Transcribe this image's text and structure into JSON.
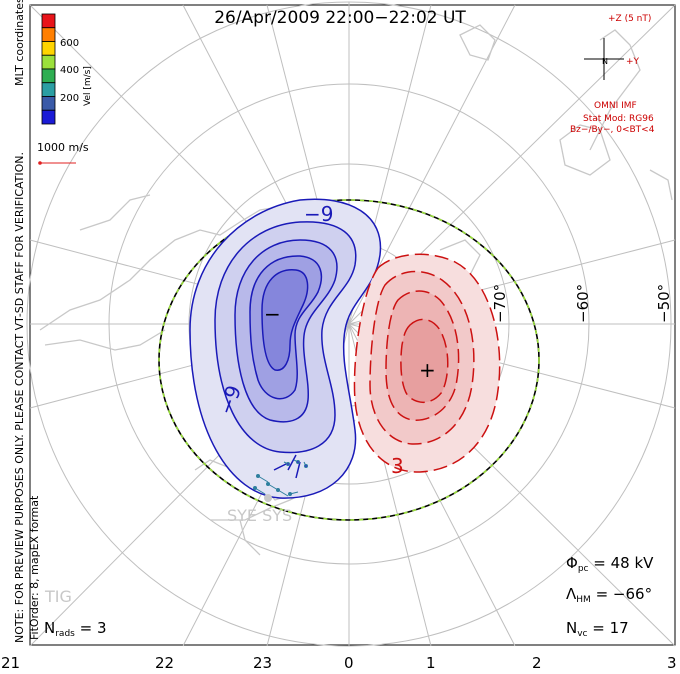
{
  "title": "26/Apr/2009 22:00−22:02 UT",
  "colorbar": {
    "label": "Vel [m/s]",
    "ticks": [
      "600",
      "400",
      "200"
    ],
    "colors": [
      "#e8141a",
      "#ff7f00",
      "#ffd400",
      "#9be03b",
      "#2eae52",
      "#2b9ea3",
      "#3a5aa8",
      "#1b1bd6"
    ]
  },
  "coordinate_label": "MLT coordinates",
  "vector_scale_label": "1000 m/s",
  "side_note": "NOTE: FOR PREVIEW PURPOSES ONLY. PLEASE CONTACT VT-SD STAFF FOR VERIFICATION.",
  "fit_label": "FitOrder: 8, mapEX format",
  "imf": {
    "z_label": "+Z (5 nT)",
    "y_label": "+Y",
    "n_label": "N",
    "omni": "OMNI IMF",
    "model": "Stat Mod: RG96",
    "conditions": "Bz−/By−, 0<BT<4"
  },
  "stats": {
    "phi_symbol": "Φ",
    "phi_sub": "pc",
    "phi_value": "= 48 kV",
    "lambda_symbol": "Λ",
    "lambda_sub": "HM",
    "lambda_value": "= −66°",
    "nvc_symbol": "N",
    "nvc_sub": "vc",
    "nvc_value": "= 17",
    "nrads_symbol": "N",
    "nrads_sub": "rads",
    "nrads_value": "= 3"
  },
  "mlt_axis_labels": [
    "21",
    "22",
    "23",
    "0",
    "1",
    "2",
    "3"
  ],
  "latitude_labels": [
    "−70°",
    "−60°",
    "−50°"
  ],
  "contour_labels": [
    "−9",
    "−9",
    "3"
  ],
  "radar_labels": [
    "SYE SYS",
    "TIG"
  ],
  "markers": {
    "min": "−",
    "max": "+"
  },
  "colors": {
    "negative": "#1a1ab8",
    "positive": "#cc1111",
    "boundary_dash": "#9be03b",
    "land": "#c8c8c8"
  }
}
